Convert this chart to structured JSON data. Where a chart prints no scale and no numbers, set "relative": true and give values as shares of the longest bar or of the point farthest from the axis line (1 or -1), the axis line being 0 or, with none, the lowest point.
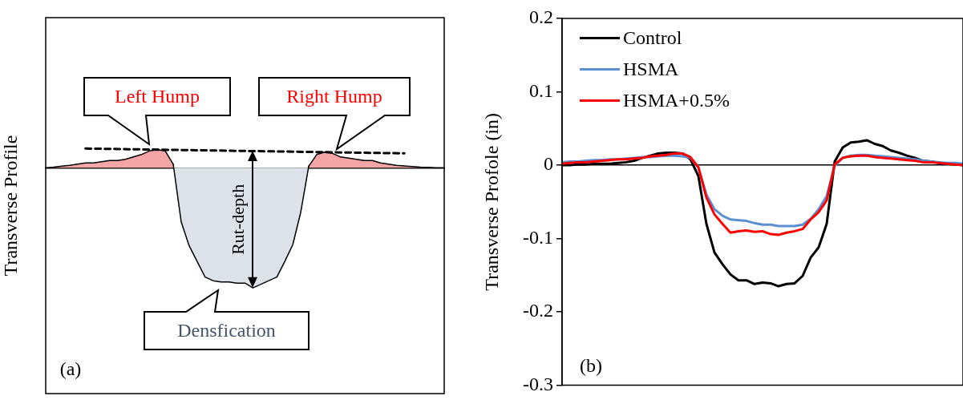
{
  "chart_data": [
    {
      "type": "area",
      "relative": true,
      "tick_labels": false,
      "marker": "none",
      "ylabel": "Transverse Profile",
      "categories": [
        null,
        null,
        null,
        null,
        null,
        null,
        null,
        null,
        null,
        null,
        null,
        null,
        null,
        null,
        null,
        null,
        null,
        null,
        null,
        null,
        null,
        null,
        null,
        null,
        null,
        null,
        null,
        null,
        null,
        null,
        null,
        null,
        null,
        null,
        null,
        null,
        null,
        null,
        null,
        null,
        null,
        null,
        null,
        null,
        null,
        null,
        null,
        null,
        null,
        null,
        null
      ],
      "series": [
        {
          "color": "#f4a5a5",
          "values": [
            0,
            0.005,
            0.013,
            0.02,
            0.03,
            0.04,
            0.04,
            0.05,
            0.06,
            0.06,
            0.07,
            0.09,
            0.11,
            0.14,
            0.15,
            0.14,
            0.03,
            null,
            null,
            null,
            null,
            null,
            null,
            null,
            null,
            null,
            null,
            null,
            null,
            null,
            null,
            null,
            null,
            0.013,
            0.11,
            0.13,
            0.12,
            0.09,
            0.08,
            0.07,
            0.06,
            0.06,
            0.04,
            0.03,
            0.02,
            0.015,
            0.01,
            0.005,
            0.003,
            0,
            0
          ]
        },
        {
          "color": "#dde1e8",
          "values": [
            null,
            null,
            null,
            null,
            null,
            null,
            null,
            null,
            null,
            null,
            null,
            null,
            null,
            null,
            null,
            null,
            0.03,
            -0.45,
            -0.65,
            -0.78,
            -0.91,
            -0.94,
            -0.95,
            -0.95,
            -0.96,
            -0.96,
            -1,
            -0.97,
            -0.94,
            -0.91,
            -0.78,
            -0.64,
            -0.37,
            0.013,
            null,
            null,
            null,
            null,
            null,
            null,
            null,
            null,
            null,
            null,
            null,
            null,
            null,
            null,
            null,
            null,
            null
          ]
        },
        {
          "type": "line",
          "line_style": "dashed",
          "color": "#000000",
          "values": [
            null,
            null,
            null,
            null,
            null,
            0.16,
            null,
            null,
            null,
            null,
            null,
            null,
            null,
            null,
            null,
            null,
            null,
            null,
            null,
            null,
            null,
            null,
            null,
            null,
            null,
            null,
            null,
            null,
            null,
            null,
            null,
            null,
            null,
            null,
            null,
            null,
            null,
            null,
            null,
            null,
            null,
            null,
            null,
            null,
            null,
            0.12,
            null,
            null,
            null,
            null,
            null
          ]
        }
      ],
      "annotations": [
        "Left Hump",
        "Right Hump",
        "Rut-depth",
        "Densfication",
        "(a)"
      ]
    },
    {
      "type": "line",
      "ylabel": "Transverse Profole (in)",
      "tick_labels": "y",
      "marker": "none",
      "legend": "top left",
      "categories": [
        null,
        null,
        null,
        null,
        null,
        null,
        null,
        null,
        null,
        null,
        null,
        null,
        null,
        null,
        null,
        null,
        null,
        null,
        null,
        null,
        null,
        null,
        null,
        null,
        null,
        null,
        null,
        null,
        null,
        null,
        null,
        null,
        null,
        null,
        null,
        null,
        null,
        null,
        null,
        null,
        null,
        null,
        null,
        null,
        null,
        null,
        null,
        null,
        null,
        null,
        null
      ],
      "ylim": [
        -0.3,
        0.2
      ],
      "yticks": [
        -0.3,
        -0.2,
        -0.1,
        0,
        0.1,
        0.2
      ],
      "series": [
        {
          "name": "Control",
          "color": "#000000",
          "values": [
            0,
            0,
            0.001,
            0.001,
            0.002,
            0.002,
            0.002,
            0.003,
            0.004,
            0.006,
            0.01,
            0.013,
            0.016,
            0.017,
            0.017,
            0.016,
            0.008,
            -0.015,
            -0.08,
            -0.119,
            -0.135,
            -0.149,
            -0.157,
            -0.157,
            -0.162,
            -0.16,
            -0.161,
            -0.165,
            -0.162,
            -0.161,
            -0.151,
            -0.126,
            -0.112,
            -0.08,
            0.005,
            0.024,
            0.031,
            0.032,
            0.034,
            0.029,
            0.026,
            0.02,
            0.017,
            0.013,
            0.01,
            0.006,
            0.005,
            0.003,
            0.002,
            0.001,
            0
          ]
        },
        {
          "name": "HSMA",
          "color": "#5b8fd0",
          "values": [
            0.004,
            0.005,
            0.005,
            0.006,
            0.007,
            0.007,
            0.008,
            0.008,
            0.009,
            0.01,
            0.011,
            0.011,
            0.012,
            0.013,
            0.013,
            0.012,
            0.01,
            -0.003,
            -0.04,
            -0.06,
            -0.069,
            -0.074,
            -0.075,
            -0.076,
            -0.079,
            -0.081,
            -0.081,
            -0.083,
            -0.083,
            -0.083,
            -0.081,
            -0.073,
            -0.06,
            -0.042,
            -0.001,
            0.01,
            0.013,
            0.014,
            0.014,
            0.013,
            0.012,
            0.011,
            0.01,
            0.009,
            0.008,
            0.006,
            0.005,
            0.004,
            0.003,
            0.003,
            0.002
          ]
        },
        {
          "name": "HSMA+0.5%",
          "color": "#ff0000",
          "values": [
            0.002,
            0.003,
            0.004,
            0.004,
            0.005,
            0.006,
            0.007,
            0.008,
            0.008,
            0.009,
            0.01,
            0.012,
            0.013,
            0.014,
            0.016,
            0.016,
            0.011,
            -0.003,
            -0.044,
            -0.067,
            -0.08,
            -0.092,
            -0.09,
            -0.089,
            -0.091,
            -0.09,
            -0.094,
            -0.095,
            -0.092,
            -0.09,
            -0.087,
            -0.074,
            -0.064,
            -0.048,
            0.001,
            0.01,
            0.012,
            0.013,
            0.013,
            0.011,
            0.01,
            0.009,
            0.008,
            0.007,
            0.006,
            0.004,
            0.004,
            0.003,
            0.002,
            0.001,
            0
          ]
        }
      ],
      "annotations": [
        "(b)"
      ]
    }
  ]
}
